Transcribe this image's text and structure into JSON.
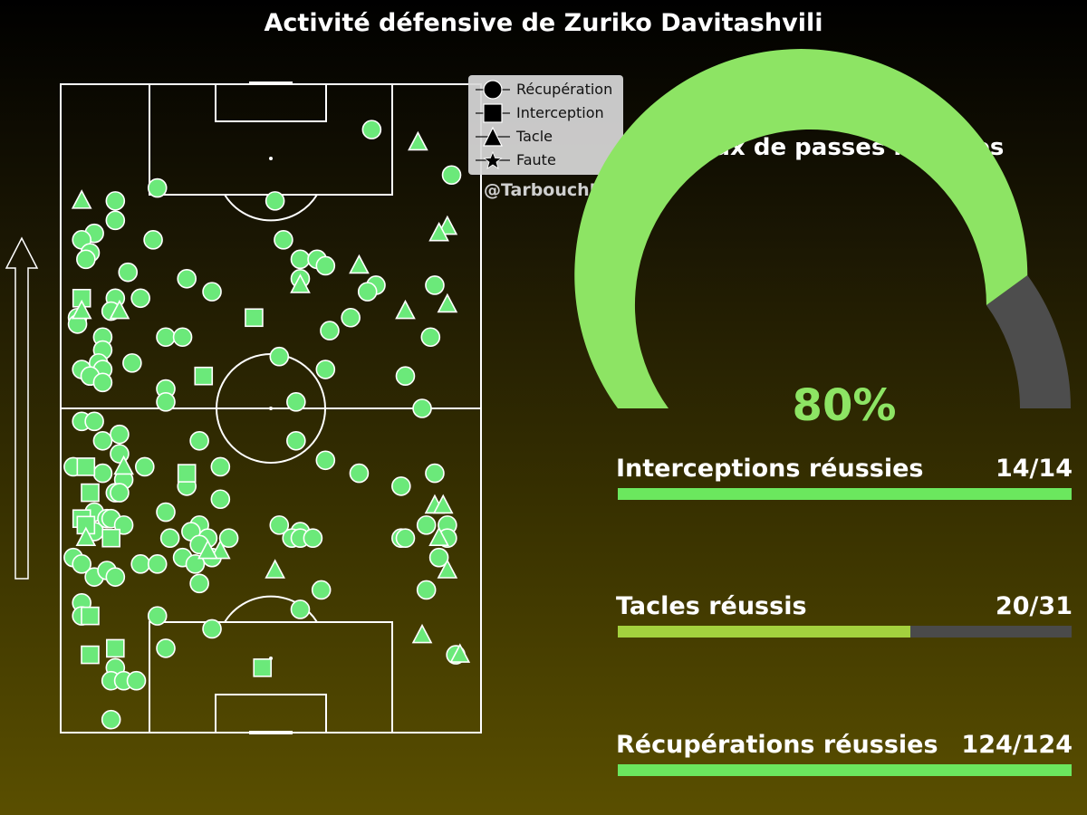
{
  "title": "Activité défensive de Zuriko Davitashvili",
  "watermark": "@TarbouchData",
  "colors": {
    "marker_fill": "#6be97a",
    "marker_stroke": "#ffffff",
    "gauge_fill": "#8de464",
    "gauge_rest": "#4d4d4d",
    "bar_full": "#6be75e",
    "bar_partial": "#a3d13e",
    "bar_track": "#4a4a4a"
  },
  "legend": [
    {
      "label": "Récupération",
      "shape": "circle"
    },
    {
      "label": "Interception",
      "shape": "square"
    },
    {
      "label": "Tacle",
      "shape": "triangle"
    },
    {
      "label": "Faute",
      "shape": "star"
    }
  ],
  "gauge": {
    "title": "Taux de passes réussies",
    "value_label": "80%",
    "value": 80
  },
  "stats": [
    {
      "label": "Interceptions réussies",
      "value": "14/14",
      "success": 14,
      "total": 14,
      "color": "#6be75e"
    },
    {
      "label": "Tacles réussis",
      "value": "20/31",
      "success": 20,
      "total": 31,
      "color": "#a3d13e"
    },
    {
      "label": "Récupérations réussies",
      "value": "124/124",
      "success": 124,
      "total": 124,
      "color": "#6be75e"
    }
  ],
  "chart_data": {
    "type": "scatter",
    "title": "Activité défensive de Zuriko Davitashvili",
    "pitch": "vertical",
    "x_range": [
      0,
      100
    ],
    "y_range": [
      0,
      100
    ],
    "series": [
      {
        "name": "Récupération",
        "points": [
          [
            74,
            93
          ],
          [
            23,
            84
          ],
          [
            51,
            82
          ],
          [
            93,
            86
          ],
          [
            13,
            82
          ],
          [
            13,
            79
          ],
          [
            8,
            77
          ],
          [
            5,
            76
          ],
          [
            22,
            76
          ],
          [
            53,
            76
          ],
          [
            57,
            73
          ],
          [
            61,
            73
          ],
          [
            7,
            74
          ],
          [
            6,
            73
          ],
          [
            16,
            71
          ],
          [
            30,
            70
          ],
          [
            36,
            68
          ],
          [
            63,
            72
          ],
          [
            57,
            70
          ],
          [
            75,
            69
          ],
          [
            89,
            69
          ],
          [
            4,
            64
          ],
          [
            13,
            67
          ],
          [
            19,
            67
          ],
          [
            12,
            65
          ],
          [
            4,
            63
          ],
          [
            69,
            64
          ],
          [
            73,
            68
          ],
          [
            64,
            62
          ],
          [
            10,
            61
          ],
          [
            25,
            61
          ],
          [
            29,
            61
          ],
          [
            88,
            61
          ],
          [
            10,
            59
          ],
          [
            9,
            57
          ],
          [
            7,
            55
          ],
          [
            10,
            56
          ],
          [
            17,
            57
          ],
          [
            5,
            56
          ],
          [
            7,
            55
          ],
          [
            52,
            58
          ],
          [
            63,
            56
          ],
          [
            82,
            55
          ],
          [
            10,
            54
          ],
          [
            25,
            53
          ],
          [
            25,
            51
          ],
          [
            56,
            51
          ],
          [
            86,
            50
          ],
          [
            5,
            48
          ],
          [
            8,
            48
          ],
          [
            14,
            46
          ],
          [
            10,
            45
          ],
          [
            14,
            43
          ],
          [
            33,
            45
          ],
          [
            38,
            41
          ],
          [
            56,
            45
          ],
          [
            63,
            42
          ],
          [
            71,
            40
          ],
          [
            89,
            40
          ],
          [
            3,
            41
          ],
          [
            10,
            40
          ],
          [
            20,
            41
          ],
          [
            15,
            39
          ],
          [
            30,
            38
          ],
          [
            13,
            37
          ],
          [
            14,
            37
          ],
          [
            38,
            36
          ],
          [
            81,
            38
          ],
          [
            8,
            34
          ],
          [
            11,
            33
          ],
          [
            12,
            33
          ],
          [
            25,
            34
          ],
          [
            15,
            32
          ],
          [
            8,
            31
          ],
          [
            33,
            32
          ],
          [
            31,
            31
          ],
          [
            52,
            32
          ],
          [
            57,
            31
          ],
          [
            55,
            30
          ],
          [
            87,
            32
          ],
          [
            92,
            32
          ],
          [
            35,
            30
          ],
          [
            33,
            29
          ],
          [
            26,
            30
          ],
          [
            40,
            30
          ],
          [
            81,
            30
          ],
          [
            3,
            27
          ],
          [
            5,
            26
          ],
          [
            19,
            26
          ],
          [
            23,
            26
          ],
          [
            29,
            27
          ],
          [
            36,
            27
          ],
          [
            32,
            26
          ],
          [
            57,
            30
          ],
          [
            60,
            30
          ],
          [
            82,
            30
          ],
          [
            92,
            30
          ],
          [
            90,
            27
          ],
          [
            8,
            24
          ],
          [
            11,
            25
          ],
          [
            13,
            24
          ],
          [
            33,
            23
          ],
          [
            62,
            22
          ],
          [
            87,
            22
          ],
          [
            5,
            20
          ],
          [
            5,
            18
          ],
          [
            23,
            18
          ],
          [
            57,
            19
          ],
          [
            36,
            16
          ],
          [
            25,
            13
          ],
          [
            94,
            12
          ],
          [
            13,
            10
          ],
          [
            12,
            8
          ],
          [
            15,
            8
          ],
          [
            18,
            8
          ],
          [
            12,
            2
          ]
        ]
      },
      {
        "name": "Interception",
        "points": [
          [
            5,
            67
          ],
          [
            46,
            64
          ],
          [
            34,
            55
          ],
          [
            6,
            41
          ],
          [
            30,
            40
          ],
          [
            7,
            37
          ],
          [
            5,
            33
          ],
          [
            6,
            32
          ],
          [
            12,
            30
          ],
          [
            7,
            18
          ],
          [
            13,
            13
          ],
          [
            7,
            12
          ],
          [
            48,
            10
          ]
        ]
      },
      {
        "name": "Tacle",
        "points": [
          [
            85,
            91
          ],
          [
            5,
            82
          ],
          [
            92,
            78
          ],
          [
            90,
            77
          ],
          [
            71,
            72
          ],
          [
            57,
            69
          ],
          [
            92,
            66
          ],
          [
            5,
            65
          ],
          [
            14,
            65
          ],
          [
            82,
            65
          ],
          [
            15,
            41
          ],
          [
            89,
            35
          ],
          [
            91,
            35
          ],
          [
            90,
            30
          ],
          [
            6,
            30
          ],
          [
            38,
            28
          ],
          [
            51,
            25
          ],
          [
            92,
            25
          ],
          [
            86,
            15
          ],
          [
            95,
            12
          ],
          [
            35,
            28
          ]
        ]
      },
      {
        "name": "Faute",
        "points": []
      }
    ],
    "legend_position": "top-right"
  }
}
